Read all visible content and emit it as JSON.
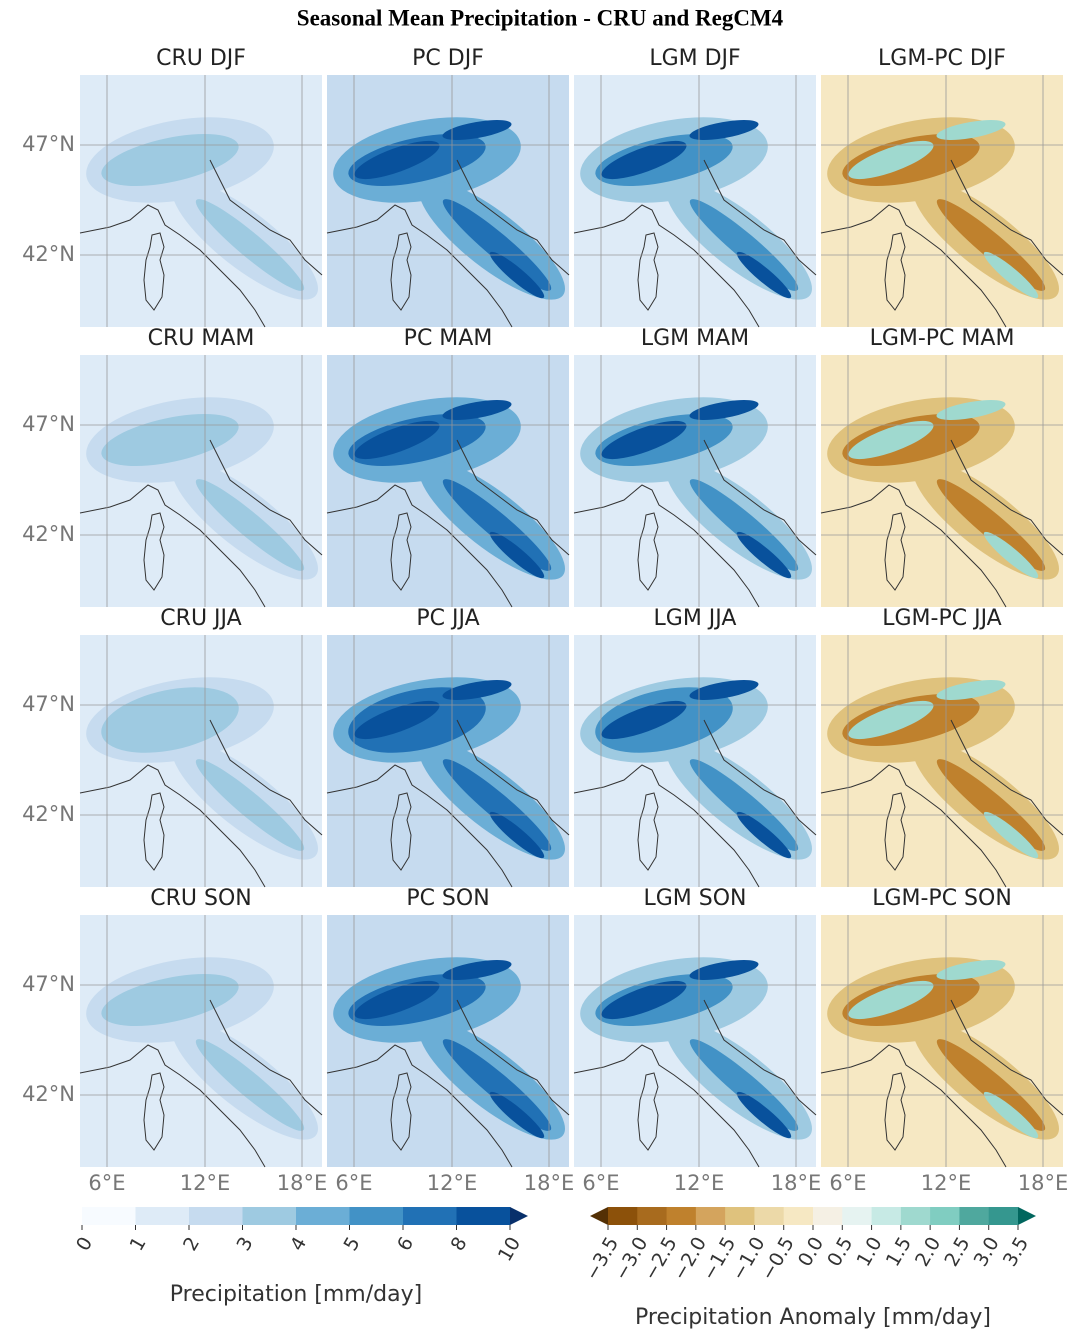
{
  "title": "Seasonal Mean Precipitation - CRU and RegCM4",
  "panels": [
    [
      "CRU DJF",
      "PC DJF",
      "LGM DJF",
      "LGM-PC DJF"
    ],
    [
      "CRU MAM",
      "PC MAM",
      "LGM MAM",
      "LGM-PC MAM"
    ],
    [
      "CRU JJA",
      "PC JJA",
      "LGM JJA",
      "LGM-PC JJA"
    ],
    [
      "CRU SON",
      "PC SON",
      "LGM SON",
      "LGM-PC SON"
    ]
  ],
  "lat_labels": [
    "47°N",
    "42°N"
  ],
  "lon_labels": [
    "6°E",
    "12°E",
    "18°E"
  ],
  "colorbars": [
    {
      "label": "Precipitation [mm/day]",
      "ticks": [
        "0",
        "1",
        "2",
        "3",
        "4",
        "5",
        "6",
        "8",
        "10"
      ],
      "colors": [
        "#f7fbff",
        "#deebf7",
        "#c6dbef",
        "#9ecae1",
        "#6baed6",
        "#4292c6",
        "#2171b5",
        "#08519c",
        "#08306b"
      ]
    },
    {
      "label": "Precipitation Anomaly [mm/day]",
      "ticks": [
        "−3.5",
        "−3.0",
        "−2.5",
        "−2.0",
        "−1.5",
        "−1.0",
        "−0.5",
        "0.0",
        "0.5",
        "1.0",
        "1.5",
        "2.0",
        "2.5",
        "3.0",
        "3.5"
      ],
      "colors": [
        "#543005",
        "#8c510a",
        "#a86b1e",
        "#bf812d",
        "#d4a45d",
        "#dfc27d",
        "#ecd9a8",
        "#f6e8c3",
        "#f5f0e4",
        "#e6f3f1",
        "#c7eae5",
        "#9fd9cf",
        "#80cdc1",
        "#4fa89e",
        "#35978f",
        "#01665e"
      ]
    }
  ]
}
